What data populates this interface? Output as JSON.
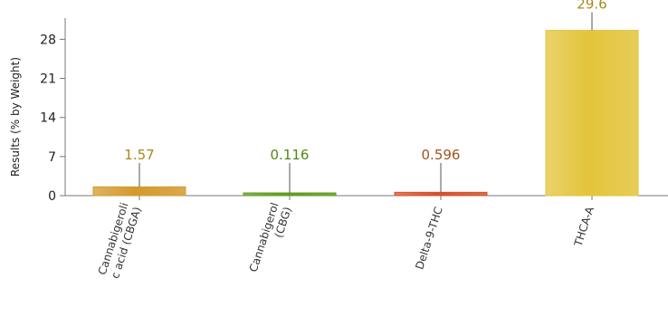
{
  "chart_data": {
    "type": "bar",
    "title": "",
    "xlabel": "",
    "ylabel": "Results (% by Weight)",
    "ylim": [
      0,
      30.5
    ],
    "yticks": [
      0,
      7,
      14,
      21,
      28
    ],
    "categories": [
      [
        "Cannabigeroli",
        "c acid (CBGA)"
      ],
      [
        "Cannabigerol",
        "(CBG)"
      ],
      [
        "Delta-9-THC"
      ],
      [
        "THCA-A"
      ]
    ],
    "values": [
      1.57,
      0.116,
      0.596,
      29.6
    ],
    "value_labels": [
      "1.57",
      "0.116",
      "0.596",
      "29.6"
    ],
    "colors": [
      "#d39a2c",
      "#5f9b1f",
      "#d2522a",
      "#e3c43a"
    ],
    "label_colors": [
      "#a98a1c",
      "#4f8a12",
      "#a0541d",
      "#a98a1c"
    ],
    "grid": false
  }
}
